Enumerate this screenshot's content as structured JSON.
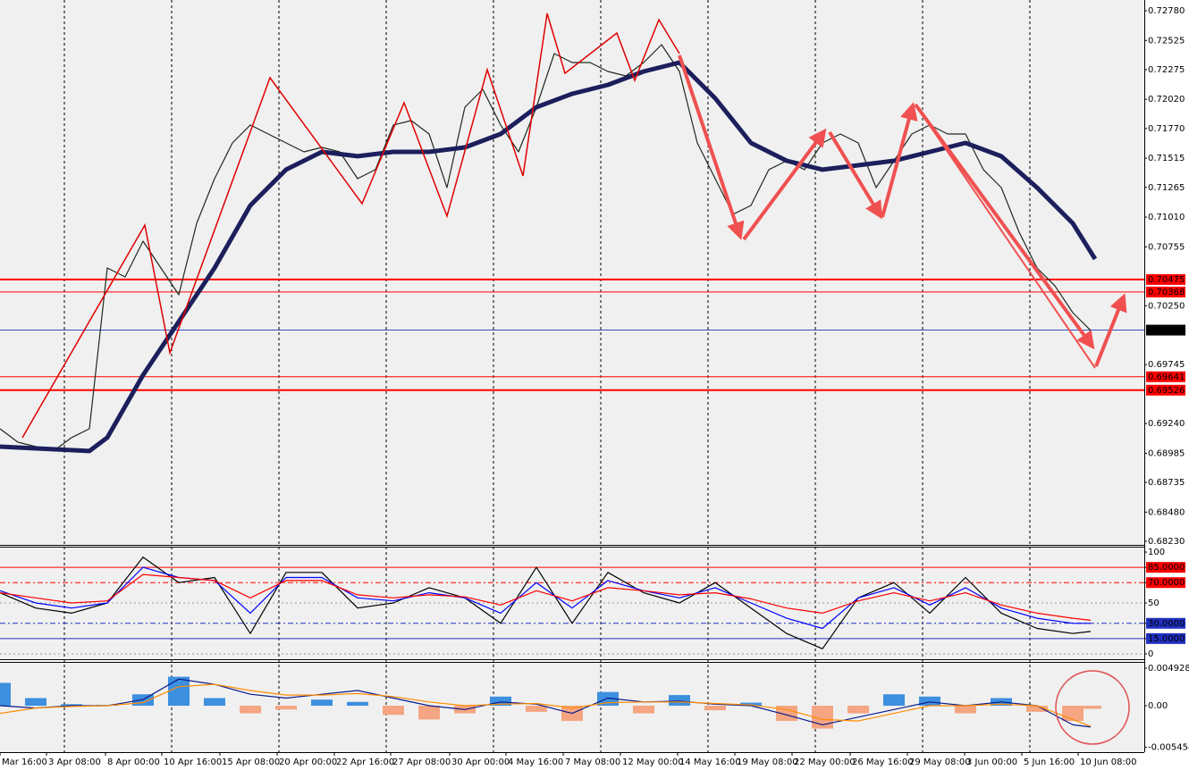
{
  "chart_data": [
    {
      "type": "line",
      "xlim": [
        0,
        64
      ],
      "ylim": [
        0.68199,
        0.72872
      ],
      "yticks": [
        {
          "value": 0.7278,
          "label": "0.72780"
        },
        {
          "value": 0.72525,
          "label": "0.72525"
        },
        {
          "value": 0.72275,
          "label": "0.72275"
        },
        {
          "value": 0.7202,
          "label": "0.72020"
        },
        {
          "value": 0.7177,
          "label": "0.71770"
        },
        {
          "value": 0.71515,
          "label": "0.71515"
        },
        {
          "value": 0.71265,
          "label": "0.71265"
        },
        {
          "value": 0.7101,
          "label": "0.71010"
        },
        {
          "value": 0.70755,
          "label": "0.70755"
        },
        {
          "value": 0.7025,
          "label": "0.70250"
        },
        {
          "value": 0.69745,
          "label": "0.69745"
        },
        {
          "value": 0.6924,
          "label": "0.69240"
        },
        {
          "value": 0.68985,
          "label": "0.68985"
        },
        {
          "value": 0.68735,
          "label": "0.68735"
        },
        {
          "value": 0.6848,
          "label": "0.68480"
        },
        {
          "value": 0.6823,
          "label": "0.68230"
        }
      ],
      "xticks": [
        {
          "value": 0,
          "label": "Mar 16:00"
        },
        {
          "value": 2.6,
          "label": "3 Apr 08:00"
        },
        {
          "value": 5.9,
          "label": "8 Apr 00:00"
        },
        {
          "value": 9.05,
          "label": "10 Apr 16:00"
        },
        {
          "value": 12.3,
          "label": "15 Apr 08:00"
        },
        {
          "value": 15.5,
          "label": "20 Apr 00:00"
        },
        {
          "value": 18.7,
          "label": "22 Apr 16:00"
        },
        {
          "value": 21.85,
          "label": "27 Apr 08:00"
        },
        {
          "value": 25.15,
          "label": "30 Apr 00:00"
        },
        {
          "value": 28.3,
          "label": "4 May 16:00"
        },
        {
          "value": 31.5,
          "label": "7 May 08:00"
        },
        {
          "value": 34.7,
          "label": "12 May 00:00"
        },
        {
          "value": 37.9,
          "label": "14 May 16:00"
        },
        {
          "value": 41.1,
          "label": "19 May 08:00"
        },
        {
          "value": 44.3,
          "label": "22 May 00:00"
        },
        {
          "value": 47.55,
          "label": "26 May 16:00"
        },
        {
          "value": 50.75,
          "label": "29 May 08:00"
        },
        {
          "value": 53.95,
          "label": "3 Jun 00:00"
        },
        {
          "value": 57.15,
          "label": "5 Jun 16:00"
        },
        {
          "value": 60.3,
          "label": "10 Jun 08:00"
        }
      ],
      "levels": [
        0.70475,
        0.70368,
        0.70041,
        0.69641,
        0.69526
      ],
      "level_colors": [
        "#ff0000",
        "#ff0000",
        "#3050c0",
        "#ff0000",
        "#ff0000"
      ],
      "series": [
        {
          "color": "#1e2a1e",
          "width": 1.2,
          "x": [
            0,
            1,
            2,
            3,
            4,
            5,
            6,
            7,
            8,
            9,
            10,
            11,
            12,
            13,
            14,
            15,
            16,
            17,
            18,
            19,
            20,
            21,
            22,
            23,
            24,
            25,
            26,
            27,
            28,
            29,
            30,
            31,
            32,
            33,
            34,
            35,
            36,
            37,
            38,
            39,
            40,
            41,
            42,
            43,
            44,
            45,
            46,
            47,
            48,
            49,
            50,
            51,
            52,
            53,
            54,
            55,
            56,
            57,
            58,
            59,
            60,
            61
          ],
          "values": [
            0.69195,
            0.6908,
            0.69042,
            0.69004,
            0.69119,
            0.69195,
            0.70574,
            0.70497,
            0.70804,
            0.70574,
            0.70344,
            0.70957,
            0.7134,
            0.71646,
            0.718,
            0.71723,
            0.71646,
            0.7157,
            0.71608,
            0.7157,
            0.7134,
            0.71417,
            0.718,
            0.71838,
            0.71723,
            0.71263,
            0.71953,
            0.72106,
            0.718,
            0.7157,
            0.71953,
            0.72412,
            0.72336,
            0.72336,
            0.72259,
            0.72221,
            0.72336,
            0.72489,
            0.72259,
            0.71646,
            0.7134,
            0.71034,
            0.7111,
            0.71417,
            0.71493,
            0.71417,
            0.71646,
            0.71723,
            0.71646,
            0.71263,
            0.71493,
            0.71723,
            0.718,
            0.71723,
            0.71723,
            0.71417,
            0.71263,
            0.7088,
            0.70574,
            0.70421,
            0.70191,
            0.70038
          ]
        },
        {
          "color": "#1c1f5c",
          "width": 5,
          "x": [
            0,
            5,
            6,
            8,
            10,
            12,
            14,
            16,
            18,
            20,
            22,
            24,
            26,
            28,
            30,
            32,
            34,
            36,
            38,
            40,
            42,
            44,
            46,
            48,
            50,
            52,
            54,
            56,
            58,
            60,
            61.25
          ],
          "values": [
            0.69042,
            0.69004,
            0.69119,
            0.69655,
            0.70114,
            0.70574,
            0.7111,
            0.71417,
            0.7157,
            0.71532,
            0.7157,
            0.7157,
            0.71608,
            0.71723,
            0.71953,
            0.72068,
            0.72144,
            0.72259,
            0.72336,
            0.72029,
            0.71646,
            0.71493,
            0.71417,
            0.71455,
            0.71493,
            0.7157,
            0.71646,
            0.71532,
            0.71263,
            0.70957,
            0.70651
          ]
        }
      ]
    },
    {
      "type": "line",
      "xlim": [
        0,
        64
      ],
      "ylim": [
        -5.3,
        105.3
      ],
      "yticks": [
        100,
        {
          "value": 85,
          "label": "85.0000"
        },
        {
          "value": 70,
          "label": "70.0000"
        },
        50,
        {
          "value": 30,
          "label": "30.0000"
        },
        {
          "value": 15,
          "label": "15.0000"
        },
        0
      ],
      "tick_colors": [
        "#999999",
        "#ff0000",
        "#ff0000",
        "#999999",
        "#2030c0",
        "#2030c0",
        "#999999"
      ],
      "x": [
        0,
        2,
        4,
        6,
        8,
        10,
        12,
        14,
        16,
        18,
        20,
        22,
        24,
        26,
        28,
        30,
        32,
        34,
        36,
        38,
        40,
        42,
        44,
        46,
        48,
        50,
        52,
        54,
        56,
        58,
        60,
        61
      ],
      "series": [
        {
          "color": "#000000",
          "values": [
            60,
            45,
            40,
            50,
            95,
            70,
            75,
            20,
            80,
            80,
            45,
            50,
            65,
            55,
            30,
            85,
            30,
            80,
            60,
            50,
            70,
            45,
            20,
            5,
            55,
            70,
            40,
            75,
            40,
            25,
            20,
            22
          ]
        },
        {
          "color": "#0000ff",
          "values": [
            62,
            50,
            45,
            50,
            85,
            75,
            72,
            40,
            75,
            75,
            55,
            52,
            60,
            55,
            40,
            70,
            45,
            72,
            62,
            55,
            65,
            50,
            35,
            25,
            55,
            65,
            48,
            65,
            45,
            35,
            30,
            30
          ]
        },
        {
          "color": "#ff0000",
          "values": [
            60,
            55,
            50,
            52,
            78,
            75,
            72,
            55,
            72,
            72,
            58,
            55,
            58,
            56,
            48,
            62,
            52,
            65,
            62,
            58,
            60,
            54,
            45,
            40,
            52,
            60,
            52,
            60,
            48,
            40,
            35,
            33
          ]
        }
      ]
    },
    {
      "type": "bar",
      "xlim": [
        0,
        64
      ],
      "ylim": [
        -0.00609,
        0.00563
      ],
      "yticks": [
        0.0049282,
        {
          "value": 0,
          "label": "0.00"
        },
        -0.005454
      ],
      "x": [
        0,
        2,
        4,
        6,
        8,
        10,
        12,
        14,
        16,
        18,
        20,
        22,
        24,
        26,
        28,
        30,
        32,
        34,
        36,
        38,
        40,
        42,
        44,
        46,
        48,
        50,
        52,
        54,
        56,
        58,
        60,
        61
      ],
      "values": [
        0.003,
        0.001,
        0.0002,
        0.0001,
        0.0015,
        0.0038,
        0.001,
        -0.001,
        -0.0005,
        0.0008,
        0.0005,
        -0.0012,
        -0.0018,
        -0.001,
        0.0012,
        -0.0008,
        -0.002,
        0.0018,
        -0.001,
        0.0014,
        -0.0006,
        0.0004,
        -0.002,
        -0.003,
        -0.001,
        0.0015,
        0.0012,
        -0.001,
        0.001,
        -0.0008,
        -0.002,
        -0.0004
      ],
      "color": "#3d8fe0",
      "negative_color": "#f4a582",
      "series": [
        {
          "color": "#0a1a8a",
          "values": [
            0,
            -0.0003,
            0,
            0,
            0.0008,
            0.0035,
            0.0028,
            0.0015,
            0.001,
            0.0015,
            0.002,
            0.001,
            0,
            -0.0005,
            0.0005,
            0.0002,
            -0.001,
            0.001,
            0.0005,
            0.0006,
            0.0002,
            0,
            -0.0012,
            -0.0025,
            -0.0015,
            -0.0005,
            0.0005,
            0,
            0.0005,
            0,
            -0.0025,
            -0.0028
          ]
        },
        {
          "color": "#ff8c00",
          "values": [
            -0.001,
            -0.0003,
            -0.0001,
            0,
            0.0004,
            0.0025,
            0.0028,
            0.002,
            0.0014,
            0.0014,
            0.0016,
            0.0012,
            0.0005,
            0,
            0.0002,
            0.0003,
            -0.0003,
            0.0004,
            0.0005,
            0.0005,
            0.0003,
            0.0001,
            -0.0005,
            -0.0018,
            -0.002,
            -0.001,
            0,
            0,
            0.0002,
            0,
            -0.0018,
            -0.0027
          ]
        }
      ]
    }
  ]
}
